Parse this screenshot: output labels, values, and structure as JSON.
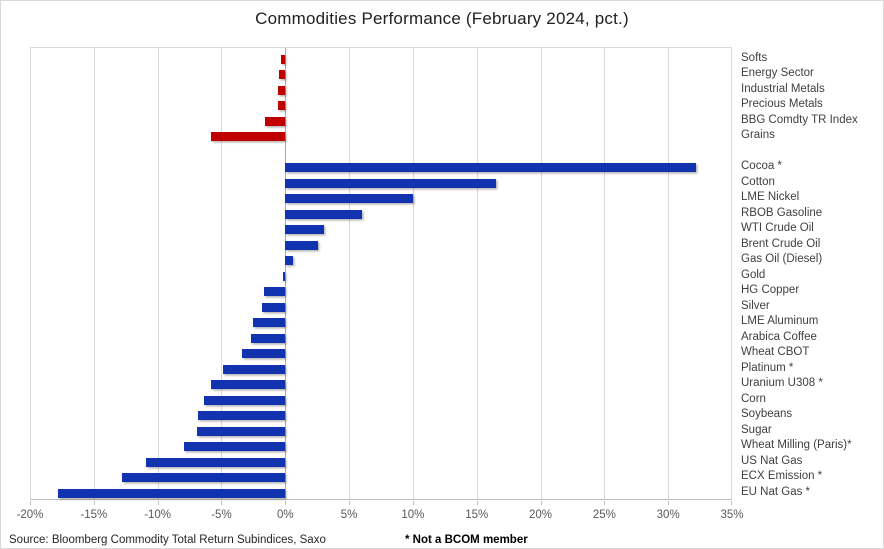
{
  "footer": {
    "source": "Source: Bloomberg Commodity Total Return Subindices, Saxo",
    "note": "* Not a BCOM member"
  },
  "colors": {
    "sector_index_bar": "#C00000",
    "commodity_bar": "#1233B0",
    "gridline": "#D9D9D9",
    "zero_line": "#ABABAB"
  },
  "chart_data": {
    "type": "bar",
    "orientation": "horizontal",
    "title": "Commodities Performance (February 2024, pct.)",
    "xlabel": "",
    "ylabel": "",
    "xlim": [
      -20,
      35
    ],
    "grid": "vertical",
    "x_ticks": [
      {
        "value": -20,
        "label": "-20%"
      },
      {
        "value": -15,
        "label": "-15%"
      },
      {
        "value": -10,
        "label": "-10%"
      },
      {
        "value": -5,
        "label": "-5%"
      },
      {
        "value": 0,
        "label": "0%"
      },
      {
        "value": 5,
        "label": "5%"
      },
      {
        "value": 10,
        "label": "10%"
      },
      {
        "value": 15,
        "label": "15%"
      },
      {
        "value": 20,
        "label": "20%"
      },
      {
        "value": 25,
        "label": "25%"
      },
      {
        "value": 30,
        "label": "30%"
      },
      {
        "value": 35,
        "label": "35%"
      }
    ],
    "bars": [
      {
        "label": "Softs",
        "value": -0.3,
        "color": "#C00000",
        "gap_after": false
      },
      {
        "label": "Energy Sector",
        "value": -0.5,
        "color": "#C00000",
        "gap_after": false
      },
      {
        "label": "Industrial Metals",
        "value": -0.6,
        "color": "#C00000",
        "gap_after": false
      },
      {
        "label": "Precious Metals",
        "value": -0.6,
        "color": "#C00000",
        "gap_after": false
      },
      {
        "label": "BBG Comdty TR Index",
        "value": -1.6,
        "color": "#C00000",
        "gap_after": false
      },
      {
        "label": "Grains",
        "value": -5.8,
        "color": "#C00000",
        "gap_after": true
      },
      {
        "label": "Cocoa *",
        "value": 32.2,
        "color": "#1233B0",
        "gap_after": false
      },
      {
        "label": "Cotton",
        "value": 16.5,
        "color": "#1233B0",
        "gap_after": false
      },
      {
        "label": "LME Nickel",
        "value": 10.0,
        "color": "#1233B0",
        "gap_after": false
      },
      {
        "label": "RBOB Gasoline",
        "value": 6.0,
        "color": "#1233B0",
        "gap_after": false
      },
      {
        "label": "WTI Crude Oil",
        "value": 3.0,
        "color": "#1233B0",
        "gap_after": false
      },
      {
        "label": "Brent Crude Oil",
        "value": 2.6,
        "color": "#1233B0",
        "gap_after": false
      },
      {
        "label": "Gas Oil (Diesel)",
        "value": 0.6,
        "color": "#1233B0",
        "gap_after": false
      },
      {
        "label": "Gold",
        "value": -0.2,
        "color": "#1233B0",
        "gap_after": false
      },
      {
        "label": "HG Copper",
        "value": -1.7,
        "color": "#1233B0",
        "gap_after": false
      },
      {
        "label": "Silver",
        "value": -1.8,
        "color": "#1233B0",
        "gap_after": false
      },
      {
        "label": "LME Aluminum",
        "value": -2.5,
        "color": "#1233B0",
        "gap_after": false
      },
      {
        "label": "Arabica Coffee",
        "value": -2.7,
        "color": "#1233B0",
        "gap_after": false
      },
      {
        "label": "Wheat CBOT",
        "value": -3.4,
        "color": "#1233B0",
        "gap_after": false
      },
      {
        "label": "Platinum *",
        "value": -4.9,
        "color": "#1233B0",
        "gap_after": false
      },
      {
        "label": "Uranium U308 *",
        "value": -5.8,
        "color": "#1233B0",
        "gap_after": false
      },
      {
        "label": "Corn",
        "value": -6.4,
        "color": "#1233B0",
        "gap_after": false
      },
      {
        "label": "Soybeans",
        "value": -6.8,
        "color": "#1233B0",
        "gap_after": false
      },
      {
        "label": "Sugar",
        "value": -6.9,
        "color": "#1233B0",
        "gap_after": false
      },
      {
        "label": "Wheat Milling (Paris)*",
        "value": -7.9,
        "color": "#1233B0",
        "gap_after": false
      },
      {
        "label": "US Nat Gas",
        "value": -10.9,
        "color": "#1233B0",
        "gap_after": false
      },
      {
        "label": "ECX Emission *",
        "value": -12.8,
        "color": "#1233B0",
        "gap_after": false
      },
      {
        "label": "EU Nat Gas *",
        "value": -17.8,
        "color": "#1233B0",
        "gap_after": false
      }
    ]
  }
}
